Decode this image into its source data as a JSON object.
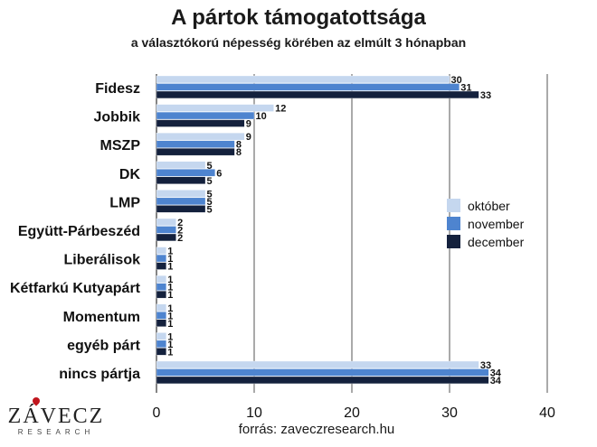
{
  "title": "A pártok támogatottsága",
  "subtitle": "a választókorú népesség körében az elmúlt 3 hónapban",
  "source": "forrás: zaveczresearch.hu",
  "logo": {
    "name": "ZÁVECZ",
    "sub": "RESEARCH"
  },
  "colors": {
    "oktober": "#c5d7ef",
    "november": "#4e84cf",
    "december": "#14213d",
    "grid": "#555555"
  },
  "chart_data": {
    "type": "bar",
    "orientation": "horizontal",
    "categories": [
      "Fidesz",
      "Jobbik",
      "MSZP",
      "DK",
      "LMP",
      "Együtt-Párbeszéd",
      "Liberálisok",
      "Kétfarkú Kutyapárt",
      "Momentum",
      "egyéb párt",
      "nincs pártja"
    ],
    "series": [
      {
        "name": "október",
        "values": [
          30,
          12,
          9,
          5,
          5,
          2,
          1,
          1,
          1,
          1,
          33
        ]
      },
      {
        "name": "november",
        "values": [
          31,
          10,
          8,
          6,
          5,
          2,
          1,
          1,
          1,
          1,
          34
        ]
      },
      {
        "name": "december",
        "values": [
          33,
          9,
          8,
          5,
          5,
          2,
          1,
          1,
          1,
          1,
          34
        ]
      }
    ],
    "xlim": [
      0,
      40
    ],
    "xticks": [
      0,
      10,
      20,
      30,
      40
    ],
    "grid": "vertical",
    "legend": "right"
  }
}
